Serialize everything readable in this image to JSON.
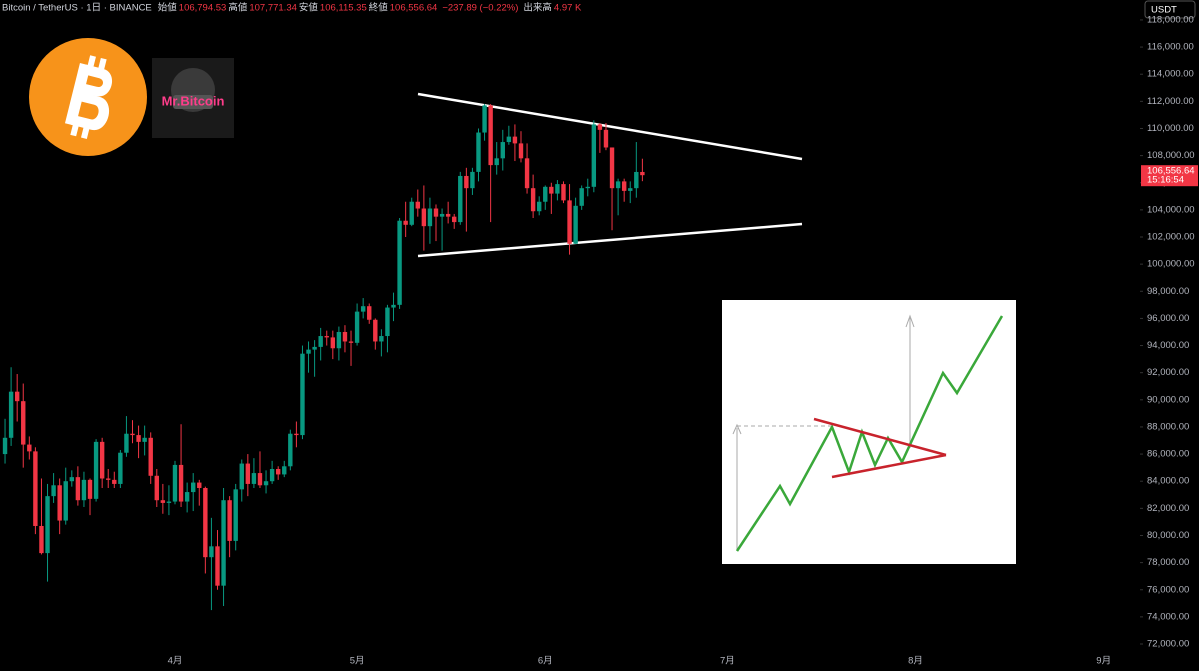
{
  "chart_data": {
    "type": "candlestick",
    "title": "Bitcoin / TetherUS · 1日 · BINANCE",
    "header_items": [
      {
        "label": "始値",
        "value": "106,794.53"
      },
      {
        "label": "高値",
        "value": "107,771.34"
      },
      {
        "label": "安値",
        "value": "106,115.35"
      },
      {
        "label": "終値",
        "value": "106,556.64"
      }
    ],
    "change": "−237.89 (−0.22%)",
    "volume_label": "出来高",
    "volume": "4.97 K",
    "currency": "USDT",
    "last_price": "106,556.64",
    "countdown": "15:16:54",
    "logo_text": "Mr.Bitcoin",
    "up_color": "#089981",
    "down_color": "#f23645",
    "categories": [
      null,
      null,
      null,
      null,
      null,
      null,
      null,
      null,
      null,
      null,
      null,
      null,
      null,
      null,
      null,
      null,
      null,
      null,
      null,
      null,
      null,
      null,
      null,
      null,
      null,
      null,
      null,
      null,
      "4月",
      null,
      null,
      null,
      null,
      null,
      null,
      null,
      null,
      null,
      null,
      null,
      null,
      null,
      null,
      null,
      null,
      null,
      null,
      null,
      null,
      null,
      null,
      null,
      null,
      null,
      null,
      null,
      null,
      null,
      "5月",
      null,
      null,
      null,
      null,
      null,
      null,
      null,
      null,
      null,
      null,
      null,
      null,
      null,
      null,
      null,
      null,
      null,
      null,
      null,
      null,
      null,
      null,
      null,
      null,
      null,
      null,
      null,
      null,
      null,
      null,
      "6月",
      null,
      null,
      null,
      null,
      null,
      null,
      null,
      null,
      null,
      null,
      null,
      null,
      null,
      null,
      null,
      null,
      null,
      null,
      null,
      null,
      null,
      null,
      null,
      null,
      null,
      null,
      null,
      null,
      null,
      "7月",
      null,
      null,
      null,
      null,
      null,
      null,
      null,
      null,
      null,
      null,
      null,
      null,
      null,
      null,
      null,
      null,
      null,
      null,
      null,
      null,
      null,
      null,
      null,
      null,
      null,
      null,
      null,
      null,
      null,
      null,
      "8月",
      null,
      null,
      null,
      null,
      null,
      null,
      null,
      null,
      null,
      null,
      null,
      null,
      null,
      null,
      null,
      null,
      null,
      null,
      null,
      null,
      null,
      null,
      null,
      null,
      null,
      null,
      null,
      null,
      null,
      null,
      "9月",
      null,
      null,
      null,
      null,
      null
    ],
    "open": [
      86000,
      87200,
      90600,
      89900,
      86700,
      86200,
      80700,
      78700,
      82900,
      83700,
      81100,
      84000,
      84300,
      82600,
      84100,
      82700,
      86900,
      84200,
      84100,
      83800,
      86100,
      87500,
      87400,
      86900,
      87200,
      84400,
      82600,
      82400,
      82500,
      85200,
      82500,
      83200,
      83900,
      83500,
      78400,
      79200,
      76300,
      82600,
      79600,
      83400,
      85300,
      83800,
      84600,
      83700,
      84000,
      84900,
      84500,
      85100,
      87500,
      87400,
      93400,
      93700,
      93900,
      94700,
      94600,
      93800,
      95000,
      94300,
      94200,
      96500,
      96900,
      95900,
      94300,
      94700,
      96800,
      97000,
      103200,
      102900,
      104600,
      104100,
      102800,
      104100,
      103500,
      103700,
      103500,
      103100,
      106500,
      105600,
      106800,
      109700,
      111700,
      107300,
      107800,
      109000,
      109400,
      108900,
      107800,
      105600,
      103900,
      104600,
      105700,
      105200,
      105900,
      104700,
      101500,
      104300,
      105600,
      105700,
      110300,
      109900,
      108600,
      105600,
      106100,
      105400,
      105600,
      106794.53,
      null,
      null,
      null,
      null,
      null,
      null,
      null,
      null,
      null,
      null,
      null,
      null,
      null,
      null,
      null,
      null,
      null,
      null,
      null,
      null,
      null,
      null,
      null,
      null,
      null,
      null,
      null,
      null,
      null,
      null,
      null,
      null,
      null,
      null,
      null,
      null,
      null,
      null,
      null,
      null,
      null,
      null,
      null,
      null,
      null,
      null,
      null,
      null,
      null,
      null,
      null,
      null,
      null,
      null,
      null,
      null,
      null,
      null,
      null,
      null,
      null,
      null,
      null,
      null,
      null,
      null,
      null,
      null,
      null,
      null,
      null,
      null,
      null,
      null,
      null,
      null,
      null,
      null,
      null,
      null,
      null
    ],
    "high": [
      88600,
      92400,
      91900,
      91200,
      87300,
      86500,
      84200,
      83800,
      84600,
      84200,
      85000,
      84800,
      85100,
      84700,
      84200,
      87100,
      87200,
      84900,
      84700,
      86300,
      88800,
      88500,
      88100,
      88100,
      87600,
      84900,
      83800,
      83700,
      85500,
      88200,
      83900,
      84600,
      84100,
      83600,
      81300,
      80400,
      83500,
      82900,
      83800,
      85600,
      86000,
      85700,
      86200,
      84800,
      85500,
      85100,
      85500,
      87800,
      88400,
      94000,
      94300,
      94400,
      95300,
      95100,
      95100,
      95400,
      95500,
      95100,
      97100,
      97500,
      97100,
      96000,
      95200,
      97000,
      97900,
      103400,
      104600,
      104900,
      105500,
      105800,
      104900,
      104400,
      104100,
      104600,
      103700,
      106800,
      107100,
      107100,
      110000,
      111800,
      111800,
      109000,
      109900,
      110200,
      110300,
      109800,
      108900,
      106600,
      105000,
      105800,
      106000,
      106200,
      106100,
      105900,
      104900,
      105800,
      106300,
      110600,
      110400,
      110400,
      108600,
      106300,
      106300,
      106100,
      109000,
      107771.34,
      null,
      null,
      null,
      null,
      null,
      null,
      null,
      null,
      null,
      null,
      null,
      null,
      null,
      null,
      null,
      null,
      null,
      null,
      null,
      null,
      null,
      null,
      null,
      null,
      null,
      null,
      null,
      null,
      null,
      null,
      null,
      null,
      null,
      null,
      null,
      null,
      null,
      null,
      null,
      null,
      null,
      null,
      null,
      null,
      null,
      null,
      null,
      null,
      null,
      null,
      null,
      null,
      null,
      null,
      null,
      null,
      null,
      null,
      null,
      null,
      null,
      null,
      null,
      null,
      null,
      null,
      null,
      null,
      null,
      null,
      null,
      null,
      null,
      null,
      null,
      null,
      null,
      null,
      null,
      null,
      null
    ],
    "low": [
      85300,
      86600,
      88400,
      85000,
      85600,
      80100,
      78600,
      76600,
      82400,
      80100,
      80800,
      83600,
      82200,
      82100,
      81500,
      82500,
      83500,
      83500,
      83500,
      83500,
      85800,
      86800,
      85700,
      85900,
      83800,
      82100,
      81600,
      81500,
      82300,
      82100,
      81700,
      81800,
      82200,
      77200,
      74500,
      76000,
      74800,
      78400,
      78900,
      82500,
      82900,
      83500,
      83500,
      83100,
      83800,
      84100,
      84300,
      84800,
      86500,
      87100,
      92000,
      91700,
      92900,
      94000,
      93000,
      92900,
      93500,
      92500,
      94000,
      96000,
      95600,
      93700,
      93200,
      93500,
      95800,
      96700,
      102000,
      102800,
      103500,
      101000,
      101500,
      101700,
      101000,
      103000,
      102600,
      102900,
      102400,
      105100,
      106100,
      109100,
      103100,
      106600,
      106900,
      108800,
      107600,
      107500,
      105200,
      103400,
      103600,
      104000,
      103700,
      104700,
      104500,
      100700,
      101500,
      104000,
      105000,
      105300,
      108200,
      108400,
      102500,
      103600,
      104600,
      104500,
      104900,
      106115.35,
      null,
      null,
      null,
      null,
      null,
      null,
      null,
      null,
      null,
      null,
      null,
      null,
      null,
      null,
      null,
      null,
      null,
      null,
      null,
      null,
      null,
      null,
      null,
      null,
      null,
      null,
      null,
      null,
      null,
      null,
      null,
      null,
      null,
      null,
      null,
      null,
      null,
      null,
      null,
      null,
      null,
      null,
      null,
      null,
      null,
      null,
      null,
      null,
      null,
      null,
      null,
      null,
      null,
      null,
      null,
      null,
      null,
      null,
      null,
      null,
      null,
      null,
      null,
      null,
      null,
      null,
      null,
      null,
      null,
      null,
      null,
      null,
      null,
      null,
      null,
      null,
      null,
      null,
      null,
      null,
      null
    ],
    "close": [
      87200,
      90600,
      89900,
      86700,
      86200,
      80700,
      78700,
      82900,
      83700,
      81100,
      84000,
      84300,
      82600,
      84100,
      82700,
      86900,
      84200,
      84100,
      83800,
      86100,
      87500,
      87400,
      86900,
      87200,
      84400,
      82600,
      82400,
      82500,
      85200,
      82500,
      83200,
      83900,
      83500,
      78400,
      79200,
      76300,
      82600,
      79600,
      83400,
      85300,
      83800,
      84600,
      83700,
      84000,
      84900,
      84500,
      85100,
      87500,
      87400,
      93400,
      93700,
      93900,
      94700,
      94600,
      93800,
      95000,
      94300,
      94200,
      96500,
      96900,
      95900,
      94300,
      94700,
      96800,
      97000,
      103200,
      102900,
      104600,
      104100,
      102800,
      104100,
      103500,
      103700,
      103500,
      103100,
      106500,
      105600,
      106800,
      109700,
      111700,
      107300,
      107800,
      109000,
      109400,
      108900,
      107800,
      105600,
      103900,
      104600,
      105700,
      105200,
      105900,
      104700,
      101500,
      104300,
      105600,
      105700,
      110300,
      109900,
      108600,
      105600,
      106100,
      105400,
      105600,
      106794.53,
      106556.64,
      null,
      null,
      null,
      null,
      null,
      null,
      null,
      null,
      null,
      null,
      null,
      null,
      null,
      null,
      null,
      null,
      null,
      null,
      null,
      null,
      null,
      null,
      null,
      null,
      null,
      null,
      null,
      null,
      null,
      null,
      null,
      null,
      null,
      null,
      null,
      null,
      null,
      null,
      null,
      null,
      null,
      null,
      null,
      null,
      null,
      null,
      null,
      null,
      null,
      null,
      null,
      null,
      null,
      null,
      null,
      null,
      null,
      null,
      null,
      null,
      null,
      null,
      null,
      null,
      null,
      null,
      null,
      null,
      null,
      null,
      null,
      null,
      null,
      null,
      null,
      null,
      null,
      null,
      null,
      null,
      null
    ],
    "ylim": [
      71190,
      119470
    ],
    "yticks": [
      {
        "value": 72000,
        "label": "72,000.00"
      },
      {
        "value": 74000,
        "label": "74,000.00"
      },
      {
        "value": 76000,
        "label": "76,000.00"
      },
      {
        "value": 78000,
        "label": "78,000.00"
      },
      {
        "value": 80000,
        "label": "80,000.00"
      },
      {
        "value": 82000,
        "label": "82,000.00"
      },
      {
        "value": 84000,
        "label": "84,000.00"
      },
      {
        "value": 86000,
        "label": "86,000.00"
      },
      {
        "value": 88000,
        "label": "88,000.00"
      },
      {
        "value": 90000,
        "label": "90,000.00"
      },
      {
        "value": 92000,
        "label": "92,000.00"
      },
      {
        "value": 94000,
        "label": "94,000.00"
      },
      {
        "value": 96000,
        "label": "96,000.00"
      },
      {
        "value": 98000,
        "label": "98,000.00"
      },
      {
        "value": 100000,
        "label": "100,000.00"
      },
      {
        "value": 102000,
        "label": "102,000.00"
      },
      {
        "value": 104000,
        "label": "104,000.00"
      },
      {
        "value": 106000,
        "label": "106,000.00"
      },
      {
        "value": 108000,
        "label": "108,000.00"
      },
      {
        "value": 110000,
        "label": "110,000.00"
      },
      {
        "value": 112000,
        "label": "112,000.00"
      },
      {
        "value": 114000,
        "label": "114,000.00"
      },
      {
        "value": 116000,
        "label": "116,000.00"
      },
      {
        "value": 118000,
        "label": "118,000.00"
      }
    ],
    "grid": false
  }
}
